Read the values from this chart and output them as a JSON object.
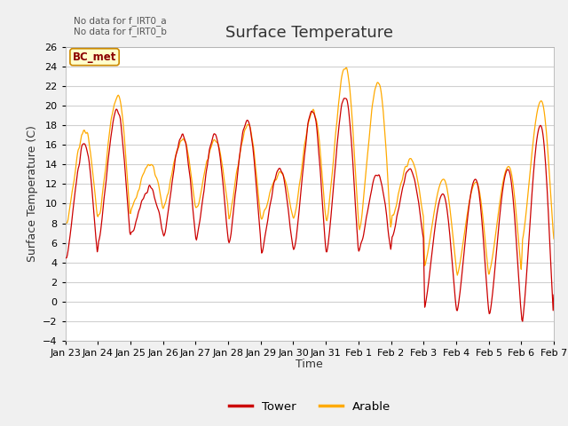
{
  "title": "Surface Temperature",
  "ylabel": "Surface Temperature (C)",
  "xlabel": "Time",
  "annotation_lines": [
    "No data for f_IRT0_a",
    "No data for f_IRT0_b"
  ],
  "bc_met_label": "BC_met",
  "legend_labels": [
    "Tower",
    "Arable"
  ],
  "legend_colors": [
    "#cc0000",
    "#ffaa00"
  ],
  "ylim": [
    -4,
    26
  ],
  "yticks": [
    -4,
    -2,
    0,
    2,
    4,
    6,
    8,
    10,
    12,
    14,
    16,
    18,
    20,
    22,
    24,
    26
  ],
  "xtick_labels": [
    "Jan 23",
    "Jan 24",
    "Jan 25",
    "Jan 26",
    "Jan 27",
    "Jan 28",
    "Jan 29",
    "Jan 30",
    "Jan 31",
    "Feb 1",
    "Feb 2",
    "Feb 3",
    "Feb 4",
    "Feb 5",
    "Feb 6",
    "Feb 7"
  ],
  "bg_color": "#f0f0f0",
  "plot_bg_color": "#ffffff",
  "grid_color": "#d0d0d0",
  "tower_color": "#cc0000",
  "arable_color": "#ffaa00",
  "title_fontsize": 13,
  "label_fontsize": 9,
  "tick_fontsize": 8,
  "n_days": 15,
  "tower_night_base": [
    4.2,
    6.0,
    7.0,
    6.5,
    6.3,
    6.0,
    5.0,
    5.0,
    4.8,
    5.0,
    6.5,
    4.5,
    4.5,
    2.5,
    3.0
  ],
  "tower_day_peak": [
    16.0,
    19.5,
    11.5,
    17.0,
    17.0,
    18.5,
    13.5,
    19.5,
    21.0,
    13.0,
    13.5,
    11.0,
    13.5,
    18.0,
    3.5
  ],
  "arable_night_base": [
    7.8,
    8.5,
    9.5,
    9.5,
    9.5,
    8.5,
    8.5,
    8.5,
    8.0,
    7.0,
    8.5,
    5.0,
    4.0,
    3.0,
    6.0
  ],
  "arable_day_peak": [
    17.5,
    21.0,
    14.0,
    16.5,
    16.5,
    18.0,
    13.0,
    19.5,
    24.0,
    22.5,
    14.5,
    12.5,
    13.8,
    20.5,
    6.0
  ]
}
